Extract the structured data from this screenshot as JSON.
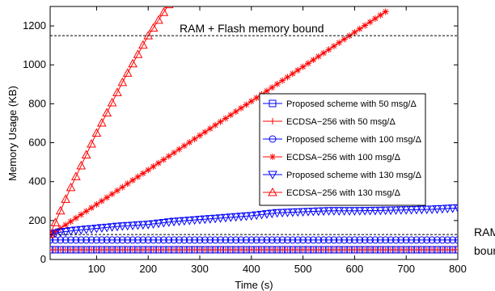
{
  "chart_data": {
    "type": "line",
    "xlabel": "Time (s)",
    "ylabel": "Memory Usage (KB)",
    "xlim": [
      10,
      800
    ],
    "ylim": [
      0,
      1300
    ],
    "xticks": [
      100,
      200,
      300,
      400,
      500,
      600,
      700,
      800
    ],
    "yticks": [
      0,
      200,
      400,
      600,
      800,
      1000,
      1200
    ],
    "grid": false,
    "legend_position": "right-middle",
    "reference_lines": [
      {
        "label": "RAM + Flash memory bound",
        "y": 1150,
        "style": "dashed"
      },
      {
        "label": "RAM bound",
        "y": 128,
        "style": "dashed"
      }
    ],
    "annotations": {
      "flash_bound": "RAM + Flash memory bound",
      "ram_line1": "RAM",
      "ram_line2": "bound"
    },
    "series": [
      {
        "name": "Proposed scheme with 50 msg/Δ",
        "color": "#0000ff",
        "marker": "square",
        "x": [
          10,
          800
        ],
        "y": [
          50,
          50
        ]
      },
      {
        "name": "ECDSA−256 with 50 msg/Δ",
        "color": "#ff0000",
        "marker": "plus",
        "x": [
          10,
          800
        ],
        "y": [
          50,
          50
        ]
      },
      {
        "name": "Proposed scheme with 100 msg/Δ",
        "color": "#0000ff",
        "marker": "circle",
        "x": [
          10,
          800
        ],
        "y": [
          100,
          100
        ]
      },
      {
        "name": "ECDSA−256 with 100 msg/Δ",
        "color": "#ff0000",
        "marker": "star",
        "x": [
          10,
          100,
          200,
          300,
          400,
          500,
          600,
          660
        ],
        "y": [
          125,
          283,
          460,
          637,
          813,
          990,
          1167,
          1273
        ]
      },
      {
        "name": "Proposed scheme with 130 msg/Δ",
        "color": "#0000ff",
        "marker": "triangle-down",
        "x": [
          10,
          30,
          60,
          100,
          150,
          200,
          250,
          300,
          350,
          400,
          450,
          500,
          550,
          600,
          650,
          700,
          750,
          800
        ],
        "y": [
          130,
          140,
          150,
          160,
          172,
          180,
          195,
          205,
          215,
          225,
          240,
          245,
          250,
          250,
          252,
          255,
          258,
          265
        ]
      },
      {
        "name": "ECDSA−256 with 130 msg/Δ",
        "color": "#ff0000",
        "marker": "triangle-up",
        "x": [
          10,
          50,
          100,
          150,
          200,
          240
        ],
        "y": [
          130,
          370,
          650,
          910,
          1150,
          1310
        ]
      }
    ]
  }
}
